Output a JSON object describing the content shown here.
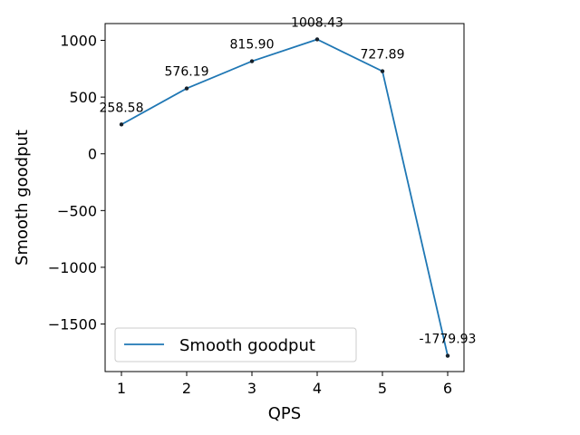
{
  "chart_data": {
    "type": "line",
    "xlabel": "QPS",
    "ylabel": "Smooth goodput",
    "x": [
      1,
      2,
      3,
      4,
      5,
      6
    ],
    "x_ticks": [
      1,
      2,
      3,
      4,
      5,
      6
    ],
    "y_ticks": [
      1000,
      500,
      0,
      -500,
      -1000,
      -1500
    ],
    "y_tick_labels": [
      "1000",
      "500",
      "0",
      "−500",
      "−1000",
      "−1500"
    ],
    "xlim": [
      0.75,
      6.25
    ],
    "ylim": [
      -1919,
      1148
    ],
    "grid": false,
    "legend_position": "lower-left",
    "series": [
      {
        "name": "Smooth goodput",
        "color": "#1f77b4",
        "marker_color": "#17212b",
        "values": [
          258.58,
          576.19,
          815.9,
          1008.43,
          727.89,
          -1779.93
        ],
        "labels": [
          "258.58",
          "576.19",
          "815.90",
          "1008.43",
          "727.89",
          "-1779.93"
        ]
      }
    ]
  }
}
